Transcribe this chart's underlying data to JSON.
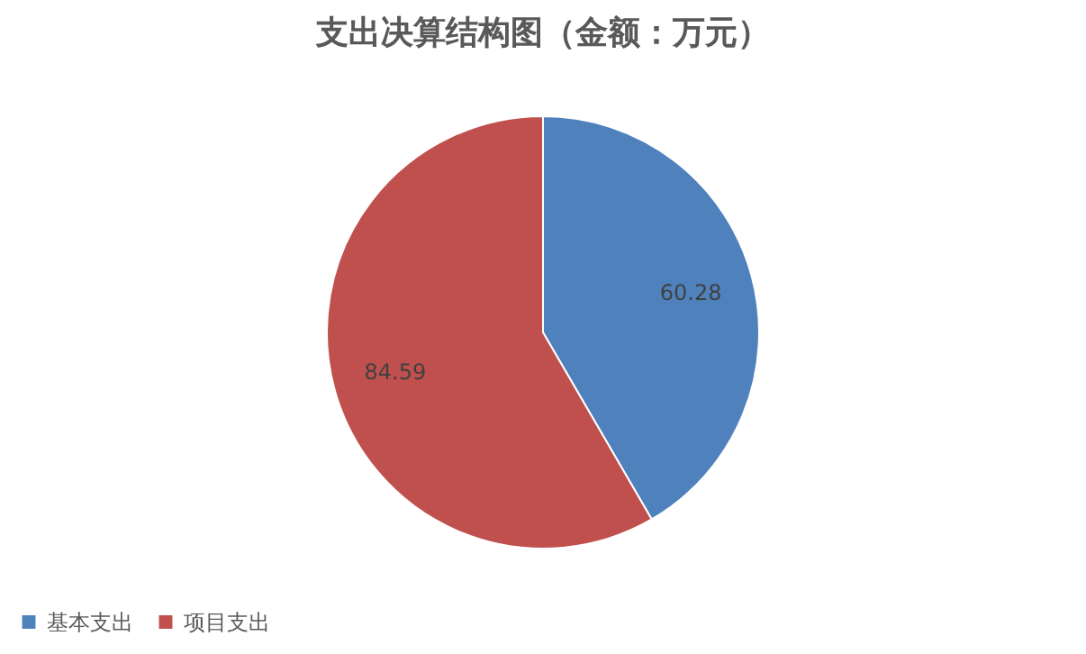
{
  "chart_data": {
    "type": "pie",
    "title": "支出决算结构图（金额：万元）",
    "categories": [
      "基本支出",
      "项目支出"
    ],
    "values": [
      60.28,
      84.59
    ],
    "colors": [
      "#4f81bd",
      "#c0504d"
    ],
    "data_labels": true,
    "legend": "bottom"
  }
}
